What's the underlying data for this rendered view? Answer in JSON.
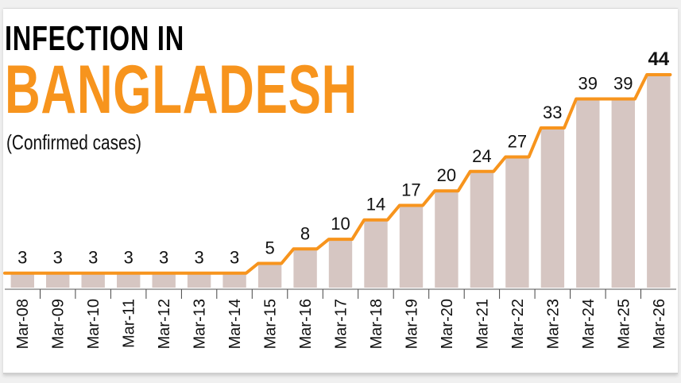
{
  "title_line1": "INFECTION IN",
  "title_line2": "BANGLADESH",
  "subtitle": "(Confirmed cases)",
  "colors": {
    "bar": "#d6c6c2",
    "line": "#f7941d",
    "title_accent": "#f7941d",
    "text": "#111111"
  },
  "chart_data": {
    "type": "bar",
    "title": "INFECTION IN BANGLADESH",
    "subtitle": "(Confirmed cases)",
    "categories": [
      "Mar-08",
      "Mar-09",
      "Mar-10",
      "Mar-11",
      "Mar-12",
      "Mar-13",
      "Mar-14",
      "Mar-15",
      "Mar-16",
      "Mar-17",
      "Mar-18",
      "Mar-19",
      "Mar-20",
      "Mar-21",
      "Mar-22",
      "Mar-23",
      "Mar-24",
      "Mar-25",
      "Mar-26"
    ],
    "series": [
      {
        "values": [
          3,
          3,
          3,
          3,
          3,
          3,
          3,
          5,
          8,
          10,
          14,
          17,
          20,
          24,
          27,
          33,
          39,
          39,
          44
        ]
      }
    ],
    "overlay": "line",
    "data_labels": true,
    "xlabel": "",
    "ylabel": "",
    "ylim": [
      0,
      44
    ],
    "grid": false
  }
}
